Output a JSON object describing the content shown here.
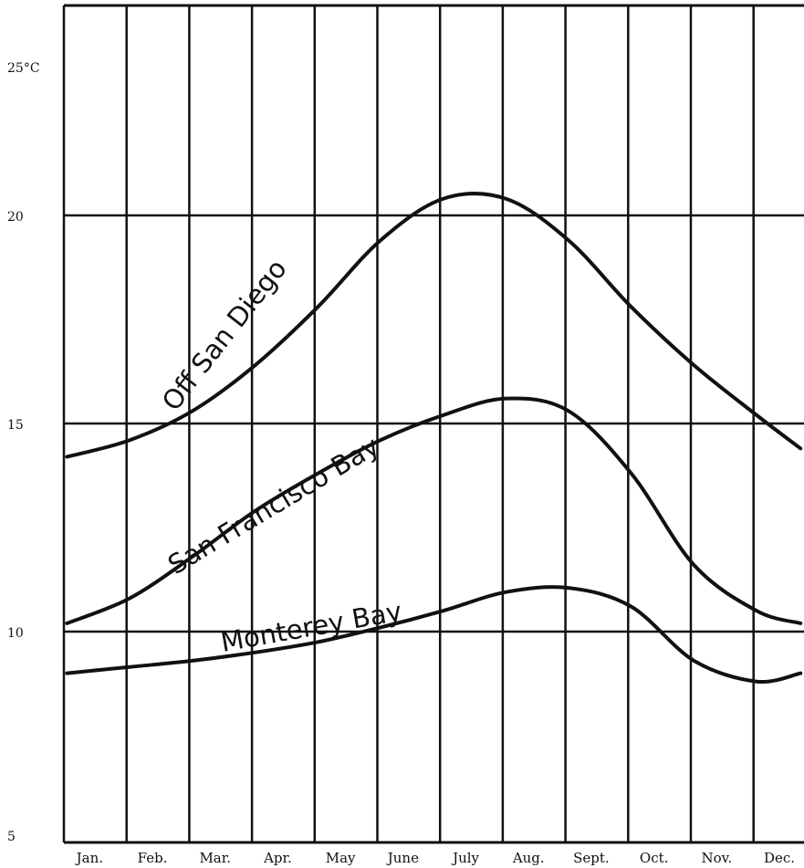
{
  "chart_data": {
    "type": "line",
    "categories": [
      "Jan.",
      "Feb.",
      "Mar.",
      "Apr.",
      "May",
      "June",
      "July",
      "Aug.",
      "Sept.",
      "Oct.",
      "Nov.",
      "Dec."
    ],
    "y_ticks": [
      {
        "value": 25,
        "label": "25°C"
      },
      {
        "value": 20,
        "label": "20"
      },
      {
        "value": 15,
        "label": "15"
      },
      {
        "value": 10,
        "label": "10"
      },
      {
        "value": 5,
        "label": "5"
      }
    ],
    "ylim": [
      5,
      26.5
    ],
    "grid": true,
    "series": [
      {
        "name": "Off San Diego",
        "x": [
          0,
          1,
          2,
          3,
          4,
          5,
          6,
          7,
          8,
          9,
          10,
          11,
          11.7
        ],
        "values": [
          14.2,
          14.6,
          15.3,
          16.4,
          17.8,
          19.4,
          20.4,
          20.4,
          19.4,
          17.8,
          16.4,
          15.2,
          14.4
        ]
      },
      {
        "name": "San Francisco Bay",
        "x": [
          0,
          1,
          2,
          3,
          4,
          5,
          6,
          7,
          8,
          9,
          10,
          11,
          11.7
        ],
        "values": [
          10.2,
          10.8,
          11.8,
          12.9,
          13.8,
          14.6,
          15.2,
          15.6,
          15.3,
          13.8,
          11.6,
          10.5,
          10.2
        ]
      },
      {
        "name": "Monterey Bay",
        "x": [
          0,
          1,
          2,
          3,
          4,
          5,
          6,
          7,
          8,
          9,
          10,
          11,
          11.7
        ],
        "values": [
          9.0,
          9.15,
          9.3,
          9.5,
          9.75,
          10.1,
          10.5,
          10.95,
          11.05,
          10.6,
          9.3,
          8.8,
          9.0
        ]
      }
    ],
    "annotations": [
      {
        "text": "Off San Diego",
        "series": 0
      },
      {
        "text": "San Francisco Bay",
        "series": 1
      },
      {
        "text": "Monterey Bay",
        "series": 2
      }
    ]
  }
}
